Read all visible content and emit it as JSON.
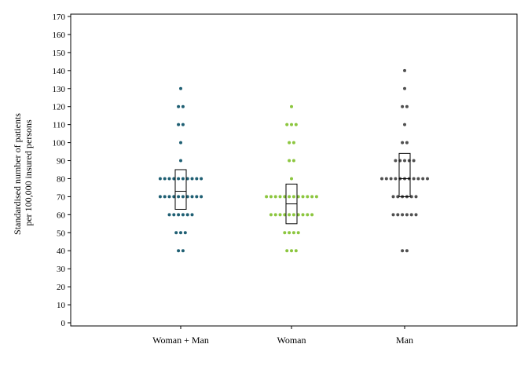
{
  "chart_data": {
    "type": "scatter",
    "subtype": "dot-strip-plot-with-box",
    "title": "",
    "ylabel_lines": [
      "Standardised number of patients",
      "per 100,000 insured persons"
    ],
    "ylim": [
      0,
      170
    ],
    "yticks": [
      0,
      10,
      20,
      30,
      40,
      50,
      60,
      70,
      80,
      90,
      100,
      110,
      120,
      130,
      140,
      150,
      160,
      170
    ],
    "categories": [
      "Woman + Man",
      "Woman",
      "Man"
    ],
    "grid": false,
    "legend": "none",
    "series": [
      {
        "category": "Woman + Man",
        "color": "#1f5f73",
        "points": [
          40,
          40,
          50,
          50,
          50,
          60,
          60,
          60,
          60,
          60,
          60,
          70,
          70,
          70,
          70,
          70,
          70,
          70,
          70,
          70,
          70,
          80,
          80,
          80,
          80,
          80,
          80,
          80,
          80,
          80,
          80,
          90,
          100,
          110,
          110,
          120,
          120,
          130
        ],
        "box": {
          "q1": 63,
          "median": 73,
          "q3": 85
        }
      },
      {
        "category": "Woman",
        "color": "#8cc63f",
        "points": [
          40,
          40,
          40,
          50,
          50,
          50,
          50,
          60,
          60,
          60,
          60,
          60,
          60,
          60,
          60,
          60,
          60,
          70,
          70,
          70,
          70,
          70,
          70,
          70,
          70,
          70,
          70,
          70,
          70,
          80,
          90,
          90,
          100,
          100,
          110,
          110,
          110,
          120
        ],
        "box": {
          "q1": 55,
          "median": 66,
          "q3": 77
        }
      },
      {
        "category": "Man",
        "color": "#505050",
        "points": [
          40,
          40,
          60,
          60,
          60,
          60,
          60,
          60,
          70,
          70,
          70,
          70,
          70,
          70,
          80,
          80,
          80,
          80,
          80,
          80,
          80,
          80,
          80,
          80,
          80,
          90,
          90,
          90,
          90,
          90,
          100,
          100,
          110,
          120,
          120,
          130,
          140
        ],
        "box": {
          "q1": 70,
          "median": 80,
          "q3": 94
        }
      }
    ]
  }
}
